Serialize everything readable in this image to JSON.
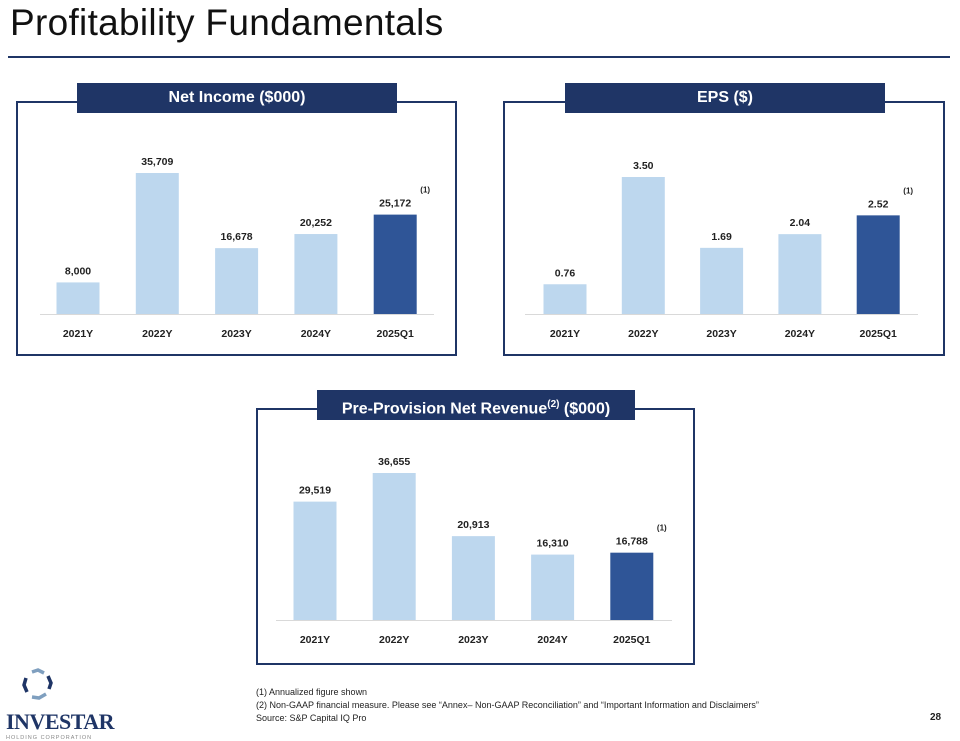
{
  "title": "Profitability Fundamentals",
  "colors": {
    "navy": "#1f3566",
    "light_bar": "#bdd7ee",
    "dark_bar": "#2f5597"
  },
  "chart_data": [
    {
      "type": "bar",
      "title": "Net Income ($000)",
      "categories": [
        "2021Y",
        "2022Y",
        "2023Y",
        "2024Y",
        "2025Q1"
      ],
      "values": [
        8000,
        35709,
        16678,
        20252,
        25172
      ],
      "labels": [
        "8,000",
        "35,709",
        "16,678",
        "20,252",
        "25,172"
      ],
      "notes": [
        "",
        "",
        "",
        "",
        "(1)"
      ]
    },
    {
      "type": "bar",
      "title": "EPS ($)",
      "categories": [
        "2021Y",
        "2022Y",
        "2023Y",
        "2024Y",
        "2025Q1"
      ],
      "values": [
        0.76,
        3.5,
        1.69,
        2.04,
        2.52
      ],
      "labels": [
        "0.76",
        "3.50",
        "1.69",
        "2.04",
        "2.52"
      ],
      "notes": [
        "",
        "",
        "",
        "",
        "(1)"
      ]
    },
    {
      "type": "bar",
      "title": "Pre-Provision Net Revenue",
      "title_sup": "(2)",
      "title_suffix": " ($000)",
      "categories": [
        "2021Y",
        "2022Y",
        "2023Y",
        "2024Y",
        "2025Q1"
      ],
      "values": [
        29519,
        36655,
        20913,
        16310,
        16788
      ],
      "labels": [
        "29,519",
        "36,655",
        "20,913",
        "16,310",
        "16,788"
      ],
      "notes": [
        "",
        "",
        "",
        "",
        "(1)"
      ]
    }
  ],
  "footnotes": [
    "(1) Annualized figure shown",
    "(2) Non-GAAP financial measure. Please see “Annex– Non-GAAP Reconciliation” and “Important Information and Disclaimers”",
    "Source: S&P Capital IQ Pro"
  ],
  "page_number": "28",
  "logo": {
    "name": "INVESTAR",
    "sub": "HOLDING CORPORATION"
  }
}
